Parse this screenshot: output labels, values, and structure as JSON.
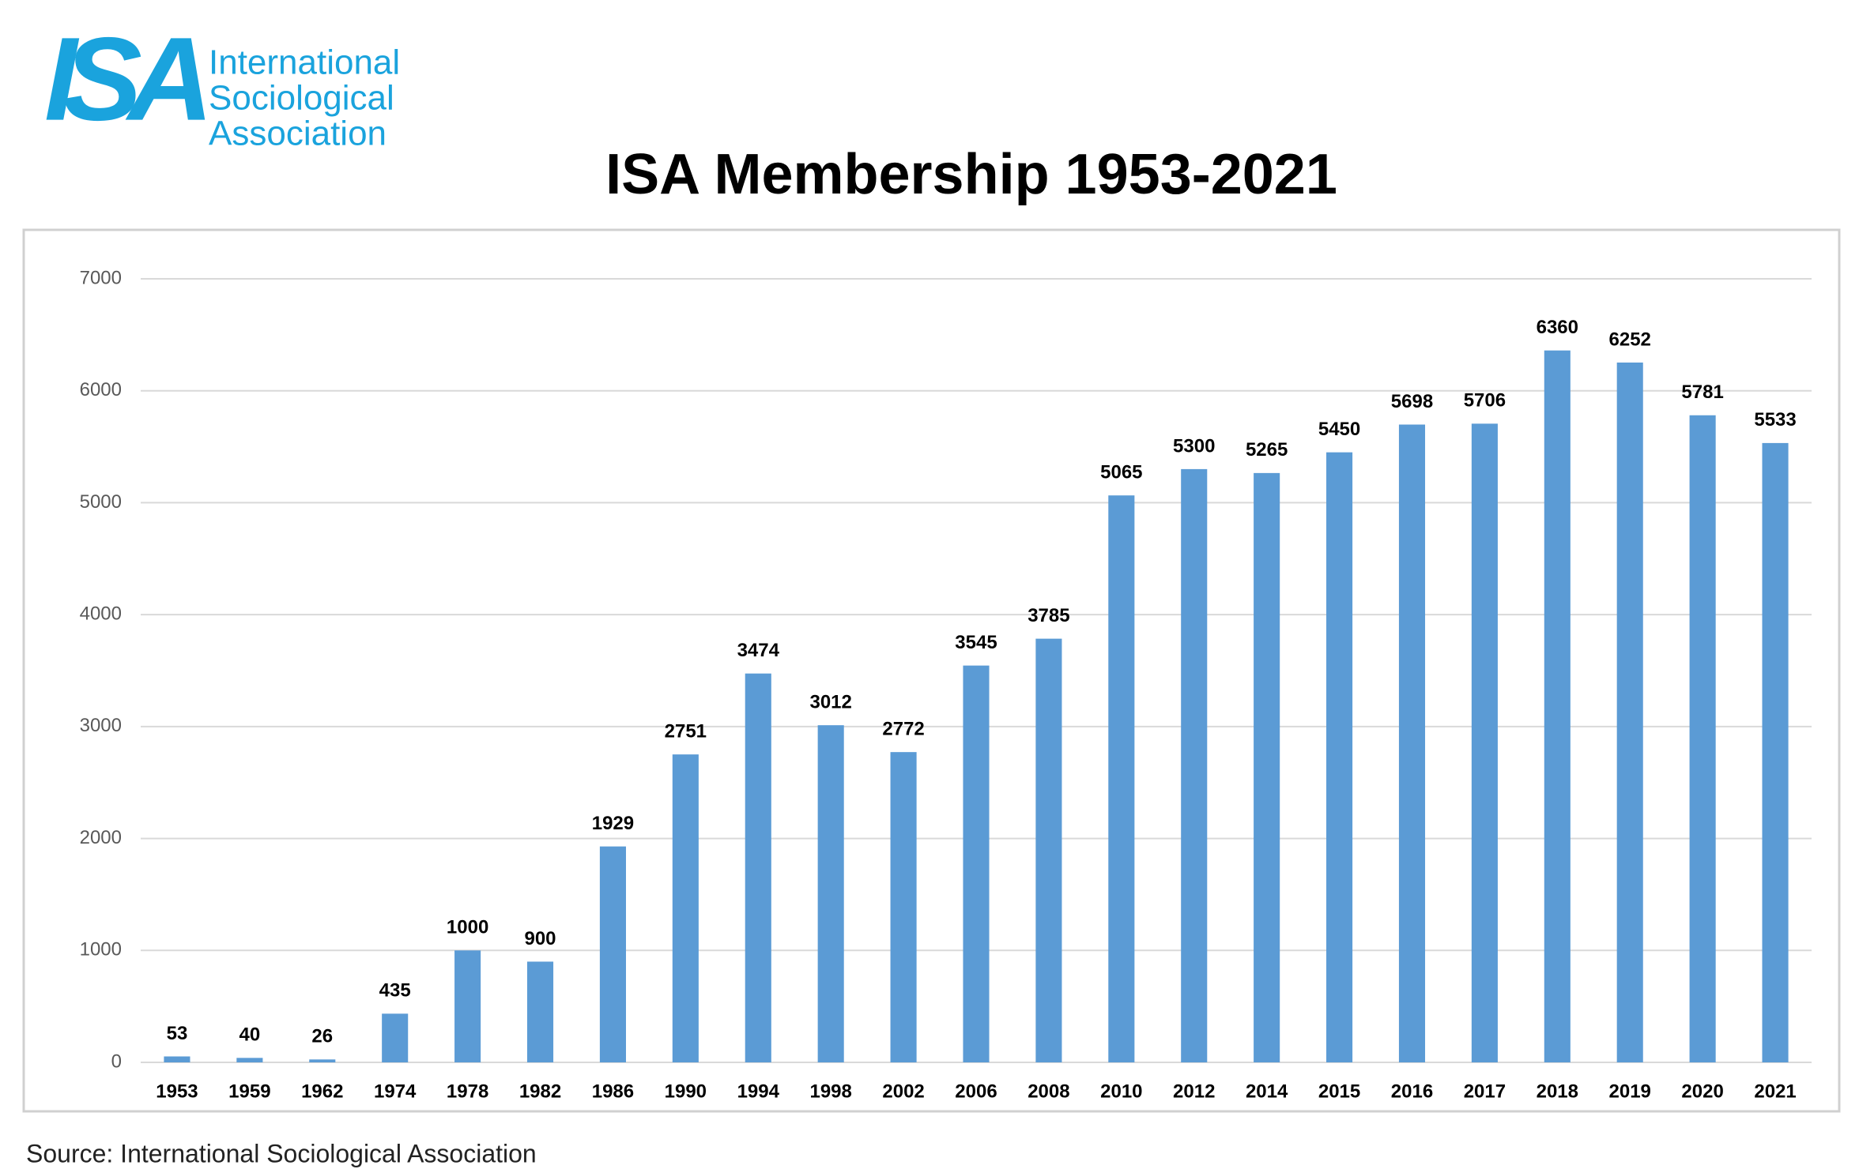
{
  "logo": {
    "mark": "ISA",
    "lines": [
      "International",
      "Sociological",
      "Association"
    ]
  },
  "chart_data": {
    "type": "bar",
    "title": "ISA Membership 1953-2021",
    "categories": [
      "1953",
      "1959",
      "1962",
      "1974",
      "1978",
      "1982",
      "1986",
      "1990",
      "1994",
      "1998",
      "2002",
      "2006",
      "2008",
      "2010",
      "2012",
      "2014",
      "2015",
      "2016",
      "2017",
      "2018",
      "2019",
      "2020",
      "2021"
    ],
    "values": [
      53,
      40,
      26,
      435,
      1000,
      900,
      1929,
      2751,
      3474,
      3012,
      2772,
      3545,
      3785,
      5065,
      5300,
      5265,
      5450,
      5698,
      5706,
      6360,
      6252,
      5781,
      5533
    ],
    "color": "#5b9bd5",
    "ylim": [
      0,
      7000
    ],
    "yticks": [
      0,
      1000,
      2000,
      3000,
      4000,
      5000,
      6000,
      7000
    ],
    "grid": true
  },
  "source": "Source: International Sociological Association"
}
